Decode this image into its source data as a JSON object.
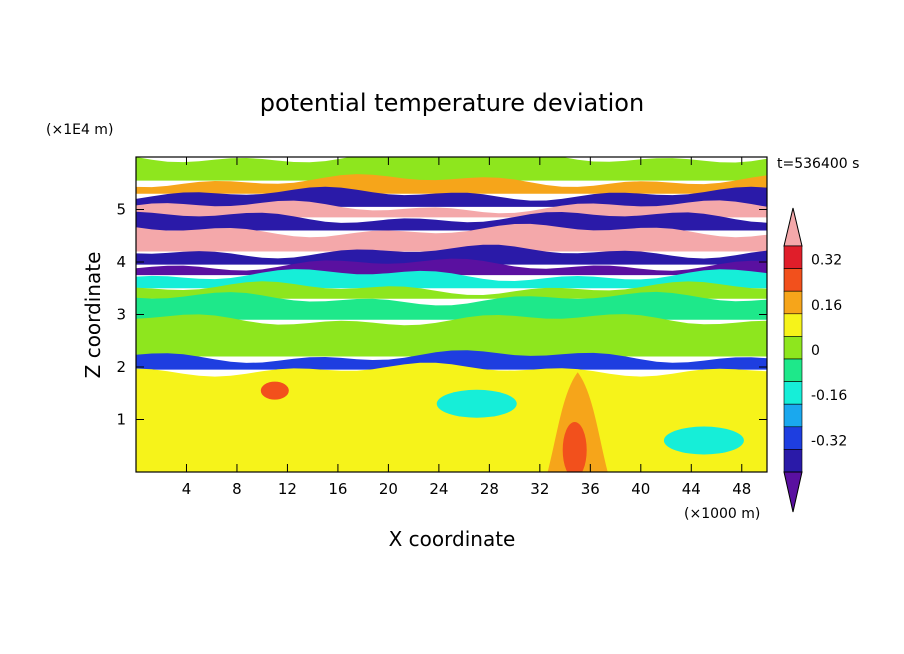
{
  "chart_data": {
    "type": "heatmap",
    "title": "potential temperature deviation",
    "xlabel": "X coordinate",
    "ylabel": "Z coordinate",
    "x_unit": "(×1000 m)",
    "y_unit": "(×1E4 m)",
    "time_label": "t=536400 s",
    "xlim": [
      0,
      50
    ],
    "ylim": [
      0,
      6
    ],
    "x_ticks": [
      4,
      8,
      12,
      16,
      20,
      24,
      28,
      32,
      36,
      40,
      44,
      48
    ],
    "y_ticks": [
      1,
      2,
      3,
      4,
      5
    ],
    "colorbar": {
      "tick_labels": [
        "0.32",
        "0.16",
        "0",
        "-0.16",
        "-0.32"
      ],
      "tick_values": [
        0.32,
        0.16,
        0,
        -0.16,
        -0.32
      ],
      "levels": [
        -0.4,
        -0.32,
        -0.24,
        -0.16,
        -0.08,
        0,
        0.08,
        0.16,
        0.24,
        0.32,
        0.4
      ],
      "colors": [
        "#5a10a0",
        "#2a1aa8",
        "#1e3ee0",
        "#1aa8ee",
        "#16eed8",
        "#1ee88a",
        "#8ee61e",
        "#f6f31a",
        "#f6a51a",
        "#f2501c",
        "#e01e2a",
        "#f4a8aa"
      ]
    },
    "bands": [
      {
        "z": [
          5.55,
          6.0
        ],
        "value": 0.0
      },
      {
        "z": [
          5.3,
          5.55
        ],
        "value": 0.2
      },
      {
        "z": [
          5.05,
          5.3
        ],
        "value": -0.38
      },
      {
        "z": [
          4.85,
          5.05
        ],
        "value": 0.45
      },
      {
        "z": [
          4.6,
          4.85
        ],
        "value": -0.4
      },
      {
        "z": [
          4.2,
          4.6
        ],
        "value": 0.45
      },
      {
        "z": [
          3.95,
          4.2
        ],
        "value": -0.4
      },
      {
        "z": [
          3.75,
          3.95
        ],
        "value": -0.42
      },
      {
        "z": [
          3.5,
          3.75
        ],
        "value": -0.1
      },
      {
        "z": [
          3.3,
          3.5
        ],
        "value": 0.03
      },
      {
        "z": [
          2.9,
          3.3
        ],
        "value": -0.03
      },
      {
        "z": [
          2.2,
          2.9
        ],
        "value": 0.04
      },
      {
        "z": [
          1.95,
          2.2
        ],
        "value": -0.25
      },
      {
        "z": [
          0.0,
          1.95
        ],
        "value": 0.1
      }
    ],
    "features": [
      {
        "type": "warm-tongue",
        "x": 35,
        "z_top": 1.9,
        "value": 0.2
      },
      {
        "type": "warm-cell",
        "x": 11,
        "z": 1.55,
        "value": 0.28
      },
      {
        "type": "cold-patch",
        "x": 45,
        "z": 0.6,
        "value": -0.1
      },
      {
        "type": "cold-patch",
        "x": 27,
        "z": 1.3,
        "value": -0.1
      }
    ]
  }
}
